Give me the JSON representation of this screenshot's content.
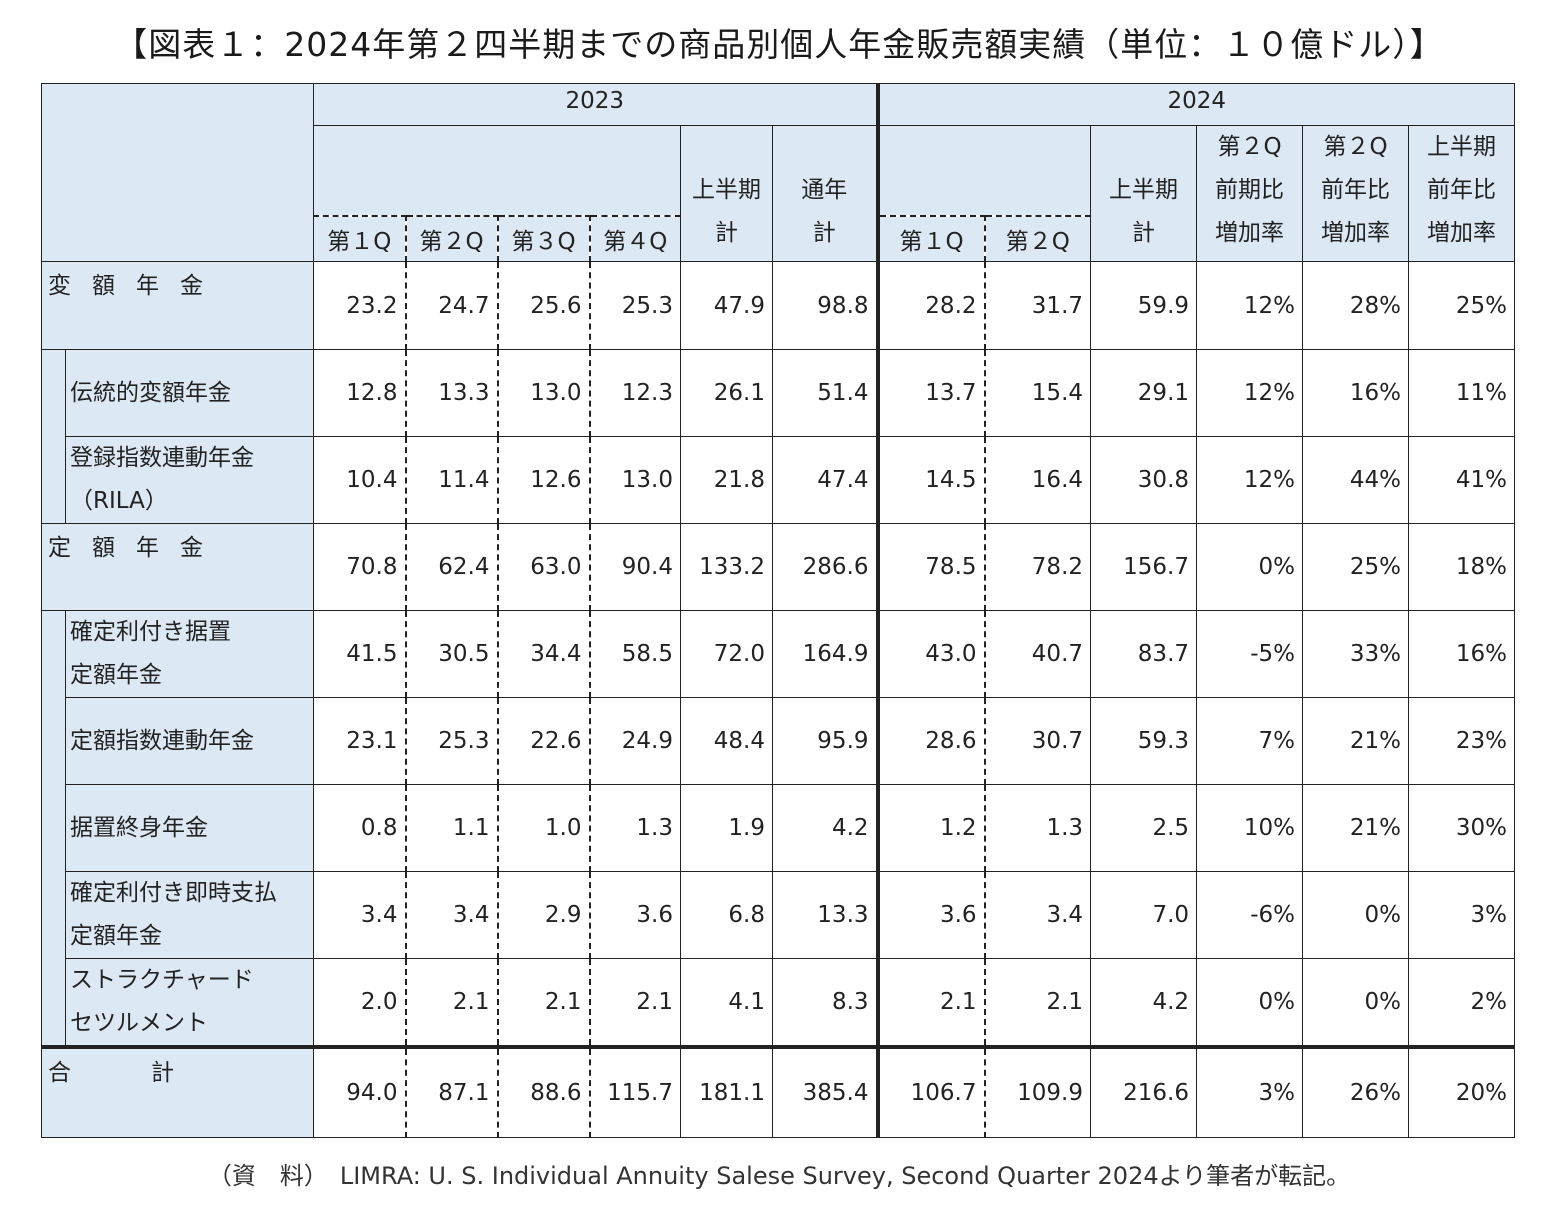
{
  "title": "【図表１：2024年第２四半期までの商品別個人年金販売額実績（単位：１０億ドル）】",
  "footer": "（資　料）　LIMRA: U. S. Individual Annuity Salese Survey, Second Quarter 2024より筆者が転記。",
  "header": {
    "year_2023": "2023",
    "year_2024": "2024",
    "q1": "第１Q",
    "q2": "第２Q",
    "q3": "第３Q",
    "q4": "第４Q",
    "h1_total_l1": "上半期",
    "h1_total_l2": "計",
    "year_total_l1": "通年",
    "year_total_l2": "計",
    "q2_qoq_l1": "第２Q",
    "q2_qoq_l2": "前期比",
    "q2_qoq_l3": "増加率",
    "q2_yoy_l1": "第２Q",
    "q2_yoy_l2": "前年比",
    "q2_yoy_l3": "増加率",
    "h1_yoy_l1": "上半期",
    "h1_yoy_l2": "前年比",
    "h1_yoy_l3": "増加率"
  },
  "colors": {
    "header_bg": "#dce9f5",
    "border": "#222222"
  },
  "chart_data": {
    "type": "table",
    "columns": [
      "2023 第１Q",
      "2023 第２Q",
      "2023 第３Q",
      "2023 第４Q",
      "2023 上半期計",
      "2023 通年計",
      "2024 第１Q",
      "2024 第２Q",
      "2024 上半期計",
      "第２Q前期比増加率",
      "第２Q前年比増加率",
      "上半期前年比増加率"
    ],
    "rows": [
      {
        "label": "変額年金",
        "values": [
          "23.2",
          "24.7",
          "25.6",
          "25.3",
          "47.9",
          "98.8",
          "28.2",
          "31.7",
          "59.9",
          "12%",
          "28%",
          "25%"
        ]
      },
      {
        "label": "伝統的変額年金",
        "values": [
          "12.8",
          "13.3",
          "13.0",
          "12.3",
          "26.1",
          "51.4",
          "13.7",
          "15.4",
          "29.1",
          "12%",
          "16%",
          "11%"
        ]
      },
      {
        "label_l1": "登録指数連動年金",
        "label_l2": "（RILA）",
        "values": [
          "10.4",
          "11.4",
          "12.6",
          "13.0",
          "21.8",
          "47.4",
          "14.5",
          "16.4",
          "30.8",
          "12%",
          "44%",
          "41%"
        ]
      },
      {
        "label": "定額年金",
        "values": [
          "70.8",
          "62.4",
          "63.0",
          "90.4",
          "133.2",
          "286.6",
          "78.5",
          "78.2",
          "156.7",
          "0%",
          "25%",
          "18%"
        ]
      },
      {
        "label_l1": "確定利付き据置",
        "label_l2": "定額年金",
        "values": [
          "41.5",
          "30.5",
          "34.4",
          "58.5",
          "72.0",
          "164.9",
          "43.0",
          "40.7",
          "83.7",
          "-5%",
          "33%",
          "16%"
        ]
      },
      {
        "label": "定額指数連動年金",
        "values": [
          "23.1",
          "25.3",
          "22.6",
          "24.9",
          "48.4",
          "95.9",
          "28.6",
          "30.7",
          "59.3",
          "7%",
          "21%",
          "23%"
        ]
      },
      {
        "label": "据置終身年金",
        "values": [
          "0.8",
          "1.1",
          "1.0",
          "1.3",
          "1.9",
          "4.2",
          "1.2",
          "1.3",
          "2.5",
          "10%",
          "21%",
          "30%"
        ]
      },
      {
        "label_l1": "確定利付き即時支払",
        "label_l2": "定額年金",
        "values": [
          "3.4",
          "3.4",
          "2.9",
          "3.6",
          "6.8",
          "13.3",
          "3.6",
          "3.4",
          "7.0",
          "-6%",
          "0%",
          "3%"
        ]
      },
      {
        "label_l1": "ストラクチャード",
        "label_l2": "セツルメント",
        "values": [
          "2.0",
          "2.1",
          "2.1",
          "2.1",
          "4.1",
          "8.3",
          "2.1",
          "2.1",
          "4.2",
          "0%",
          "0%",
          "2%"
        ]
      },
      {
        "label": "合計",
        "values": [
          "94.0",
          "87.1",
          "88.6",
          "115.7",
          "181.1",
          "385.4",
          "106.7",
          "109.9",
          "216.6",
          "3%",
          "26%",
          "20%"
        ]
      }
    ]
  }
}
